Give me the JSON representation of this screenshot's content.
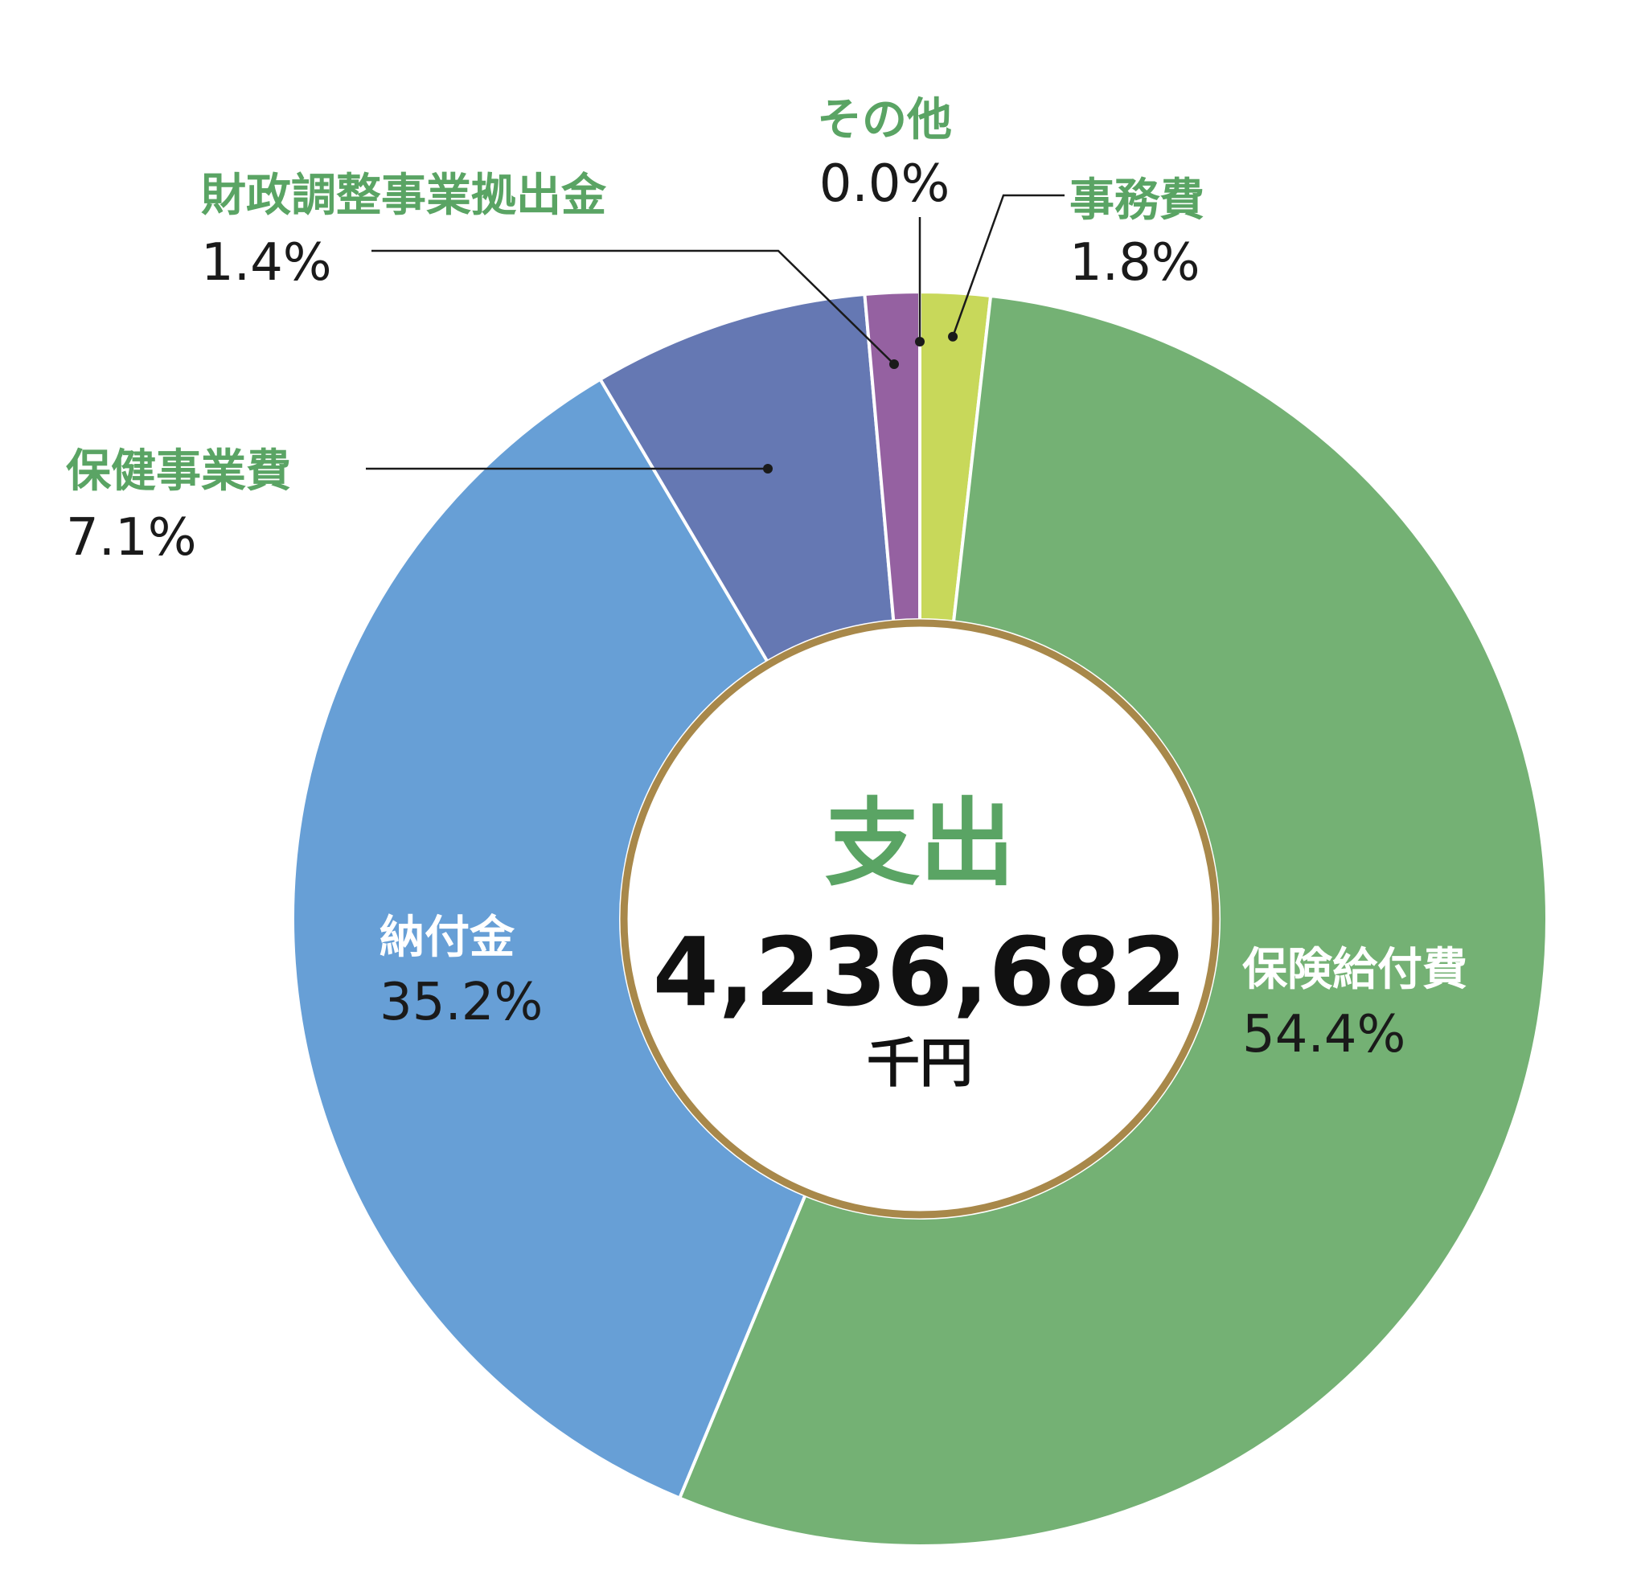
{
  "chart_data": {
    "type": "pie",
    "donut": true,
    "center": {
      "title": "支出",
      "total": "4,236,682",
      "unit": "千円"
    },
    "slices": [
      {
        "label": "事務費",
        "percent_label": "1.8%",
        "value": 1.8,
        "color": "#c8d85a"
      },
      {
        "label": "保険給付費",
        "percent_label": "54.4%",
        "value": 54.4,
        "color": "#74b174"
      },
      {
        "label": "納付金",
        "percent_label": "35.2%",
        "value": 35.2,
        "color": "#679fd6"
      },
      {
        "label": "保健事業費",
        "percent_label": "7.1%",
        "value": 7.1,
        "color": "#6578b3"
      },
      {
        "label": "財政調整事業拠出金",
        "percent_label": "1.4%",
        "value": 1.4,
        "color": "#9561a1"
      },
      {
        "label": "その他",
        "percent_label": "0.0%",
        "value": 0.0,
        "color": "#74b174"
      }
    ],
    "colors": {
      "label_text": "#5aa464",
      "center_ring": "#a8884a",
      "slice_border": "#ffffff"
    }
  }
}
